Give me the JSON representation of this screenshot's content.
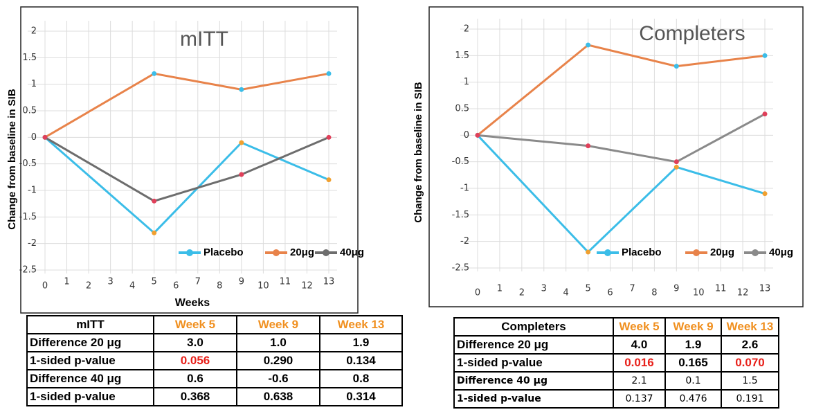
{
  "chart_data": [
    {
      "type": "line",
      "title": "mITT",
      "y_label": "Change from baseline in SIB",
      "x_label": "Weeks",
      "x": [
        0,
        5,
        9,
        13
      ],
      "xlim": [
        0,
        13
      ],
      "xticks": [
        0,
        1,
        2,
        3,
        4,
        5,
        6,
        7,
        8,
        9,
        10,
        11,
        12,
        13
      ],
      "ylim": [
        -2.5,
        2
      ],
      "yticks": [
        -2.5,
        -2,
        -1.5,
        -1,
        -0.5,
        0,
        0.5,
        1,
        1.5,
        2
      ],
      "grid": true,
      "legend": "lower right",
      "series": [
        {
          "name": "Placebo",
          "color": "#3bbde8",
          "marker_color": "#f0a030",
          "values": [
            0,
            -1.8,
            -0.1,
            -0.8
          ]
        },
        {
          "name": "20μg",
          "color": "#e8834a",
          "marker_color": "#3bbde8",
          "values": [
            0,
            1.2,
            0.9,
            1.2
          ]
        },
        {
          "name": "40μg",
          "color": "#6d6d6d",
          "marker_color": "#e0405a",
          "values": [
            0,
            -1.2,
            -0.7,
            0
          ]
        }
      ]
    },
    {
      "type": "line",
      "title": "Completers",
      "y_label": "Change from baseline in SIB",
      "x": [
        0,
        5,
        9,
        13
      ],
      "xlim": [
        0,
        13
      ],
      "xticks": [
        0,
        1,
        2,
        3,
        4,
        5,
        6,
        7,
        8,
        9,
        10,
        11,
        12,
        13
      ],
      "ylim": [
        -2.5,
        2
      ],
      "yticks": [
        -2.5,
        -2,
        -1.5,
        -1,
        -0.5,
        0,
        0.5,
        1,
        1.5,
        2
      ],
      "grid": true,
      "legend": "lower right",
      "series": [
        {
          "name": "Placebo",
          "color": "#3bbde8",
          "marker_color": "#f0a030",
          "values": [
            0,
            -2.2,
            -0.6,
            -1.1
          ]
        },
        {
          "name": "20μg",
          "color": "#e8834a",
          "marker_color": "#3bbde8",
          "values": [
            0,
            1.7,
            1.3,
            1.5
          ]
        },
        {
          "name": "40μg",
          "color": "#8a8a8a",
          "marker_color": "#e0405a",
          "values": [
            0,
            -0.2,
            -0.5,
            0.4
          ]
        }
      ]
    }
  ],
  "tables": [
    {
      "header": [
        "mITT",
        "Week 5",
        "Week 9",
        "Week 13"
      ],
      "rows": [
        [
          "Difference 20 μg",
          "3.0",
          "1.0",
          "1.9"
        ],
        [
          "1-sided p-value",
          "0.056",
          "0.290",
          "0.134"
        ],
        [
          "Difference 40 μg",
          "0.6",
          "-0.6",
          "0.8"
        ],
        [
          "1-sided p-value",
          "0.368",
          "0.638",
          "0.314"
        ]
      ]
    },
    {
      "header": [
        "Completers",
        "Week 5",
        "Week 9",
        "Week 13"
      ],
      "rows": [
        [
          "Difference 20 μg",
          "4.0",
          "1.9",
          "2.6"
        ],
        [
          "1-sided p-value",
          "0.016",
          "0.165",
          "0.070"
        ],
        [
          "Difference 40 μg",
          "2.1",
          "0.1",
          "1.5"
        ],
        [
          "1-sided p-value",
          "0.137",
          "0.476",
          "0.191"
        ]
      ]
    }
  ]
}
